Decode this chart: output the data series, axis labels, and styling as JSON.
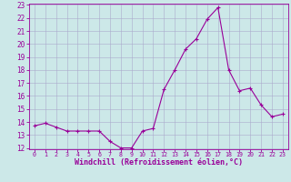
{
  "x": [
    0,
    1,
    2,
    3,
    4,
    5,
    6,
    7,
    8,
    9,
    10,
    11,
    12,
    13,
    14,
    15,
    16,
    17,
    18,
    19,
    20,
    21,
    22,
    23
  ],
  "y": [
    13.7,
    13.9,
    13.6,
    13.3,
    13.3,
    13.3,
    13.3,
    12.5,
    12.0,
    12.0,
    13.3,
    13.5,
    16.5,
    18.0,
    19.6,
    20.4,
    21.9,
    22.8,
    18.0,
    16.4,
    16.6,
    15.3,
    14.4,
    14.6
  ],
  "ylim": [
    12,
    23
  ],
  "xlim": [
    -0.5,
    23.5
  ],
  "yticks": [
    12,
    13,
    14,
    15,
    16,
    17,
    18,
    19,
    20,
    21,
    22,
    23
  ],
  "xticks": [
    0,
    1,
    2,
    3,
    4,
    5,
    6,
    7,
    8,
    9,
    10,
    11,
    12,
    13,
    14,
    15,
    16,
    17,
    18,
    19,
    20,
    21,
    22,
    23
  ],
  "xlabel": "Windchill (Refroidissement éolien,°C)",
  "line_color": "#990099",
  "marker": "+",
  "bg_color": "#cce8e8",
  "grid_color": "#aaaacc",
  "label_color": "#990099",
  "tick_color": "#990099",
  "xlabel_fontsize": 6.0,
  "ytick_fontsize": 5.5,
  "xtick_fontsize": 4.8
}
